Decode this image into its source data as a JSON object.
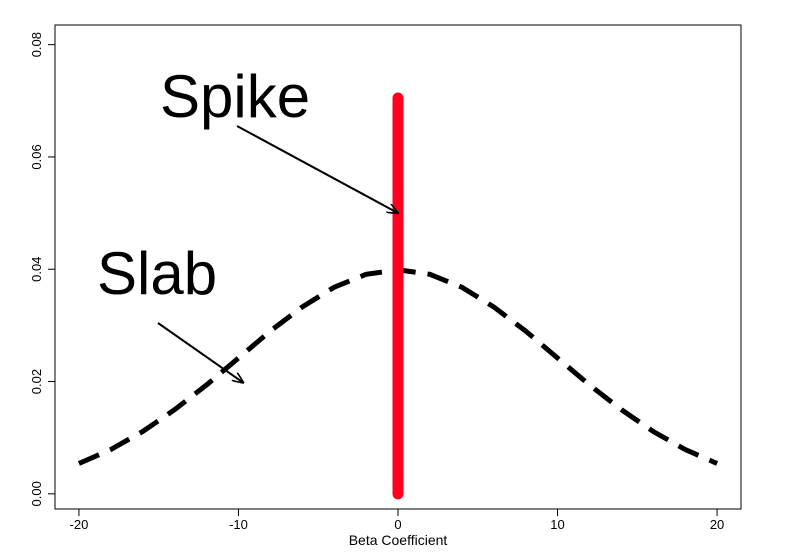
{
  "chart_data": {
    "type": "line",
    "title": "",
    "xlabel": "Beta Coefficient",
    "ylabel": "",
    "xlim": [
      -21.5,
      21.5
    ],
    "ylim": [
      -0.0027,
      0.0835
    ],
    "x_ticks": [
      -20,
      -10,
      0,
      10,
      20
    ],
    "y_ticks": [
      0.0,
      0.02,
      0.04,
      0.06,
      0.08
    ],
    "x_tick_labels": [
      "-20",
      "-10",
      "0",
      "10",
      "20"
    ],
    "y_tick_labels": [
      "0.00",
      "0.02",
      "0.04",
      "0.06",
      "0.08"
    ],
    "grid": false,
    "legend": "none",
    "series": [
      {
        "role": "slab",
        "style": "dashed",
        "color": "#000000",
        "x": [
          -20,
          -18,
          -16,
          -14,
          -12,
          -10,
          -8,
          -6,
          -4,
          -2,
          0,
          2,
          4,
          6,
          8,
          10,
          12,
          14,
          16,
          18,
          20
        ],
        "y": [
          0.0054,
          0.0079,
          0.0111,
          0.015,
          0.0194,
          0.0242,
          0.029,
          0.0333,
          0.0368,
          0.0391,
          0.0399,
          0.0391,
          0.0368,
          0.0333,
          0.029,
          0.0242,
          0.0194,
          0.015,
          0.0111,
          0.0079,
          0.0054
        ]
      },
      {
        "role": "spike",
        "style": "solid",
        "color": "#ff0022",
        "x": [
          0,
          0
        ],
        "y": [
          0.0,
          0.0705
        ]
      }
    ],
    "annotations": [
      {
        "text": "Spike",
        "arrow_to": [
          0,
          0.05
        ]
      },
      {
        "text": "Slab",
        "arrow_to": [
          -9.7,
          0.0198
        ]
      }
    ]
  }
}
